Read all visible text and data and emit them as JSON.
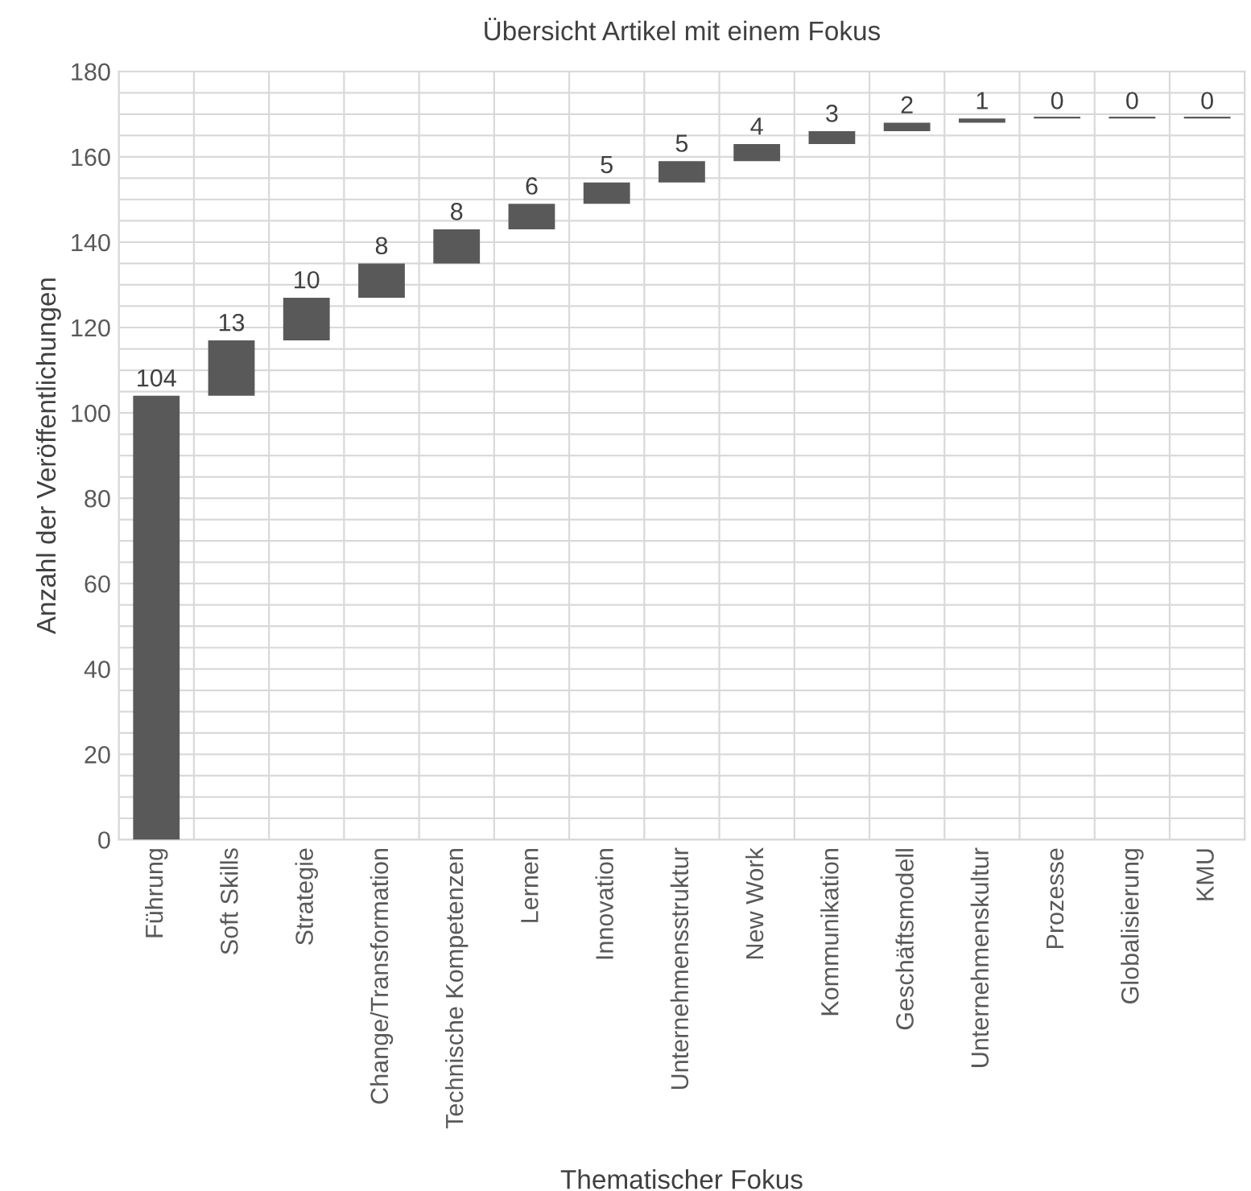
{
  "chart_data": {
    "type": "bar",
    "title": "Übersicht Artikel mit einem Fokus",
    "xlabel": "Thematischer Fokus",
    "ylabel": "Anzahl der Veröffentlichungen",
    "categories": [
      "Führung",
      "Soft Skills",
      "Strategie",
      "Change/Transformation",
      "Technische Kompetenzen",
      "Lernen",
      "Innovation",
      "Unternehmensstruktur",
      "New Work",
      "Kommunikation",
      "Geschäftsmodell",
      "Unternehmenskultur",
      "Prozesse",
      "Globalisierung",
      "KMU"
    ],
    "values": [
      104,
      13,
      10,
      8,
      8,
      6,
      5,
      5,
      4,
      3,
      2,
      1,
      0,
      0,
      0
    ],
    "base": [
      0,
      104,
      117,
      127,
      135,
      143,
      149,
      154,
      159,
      163,
      166,
      168,
      169,
      169,
      169
    ],
    "color": "#595959",
    "ylim": [
      0,
      180
    ],
    "yticks": [
      0,
      20,
      40,
      60,
      80,
      100,
      120,
      140,
      160,
      180
    ],
    "grid": true,
    "data_labels": true
  }
}
